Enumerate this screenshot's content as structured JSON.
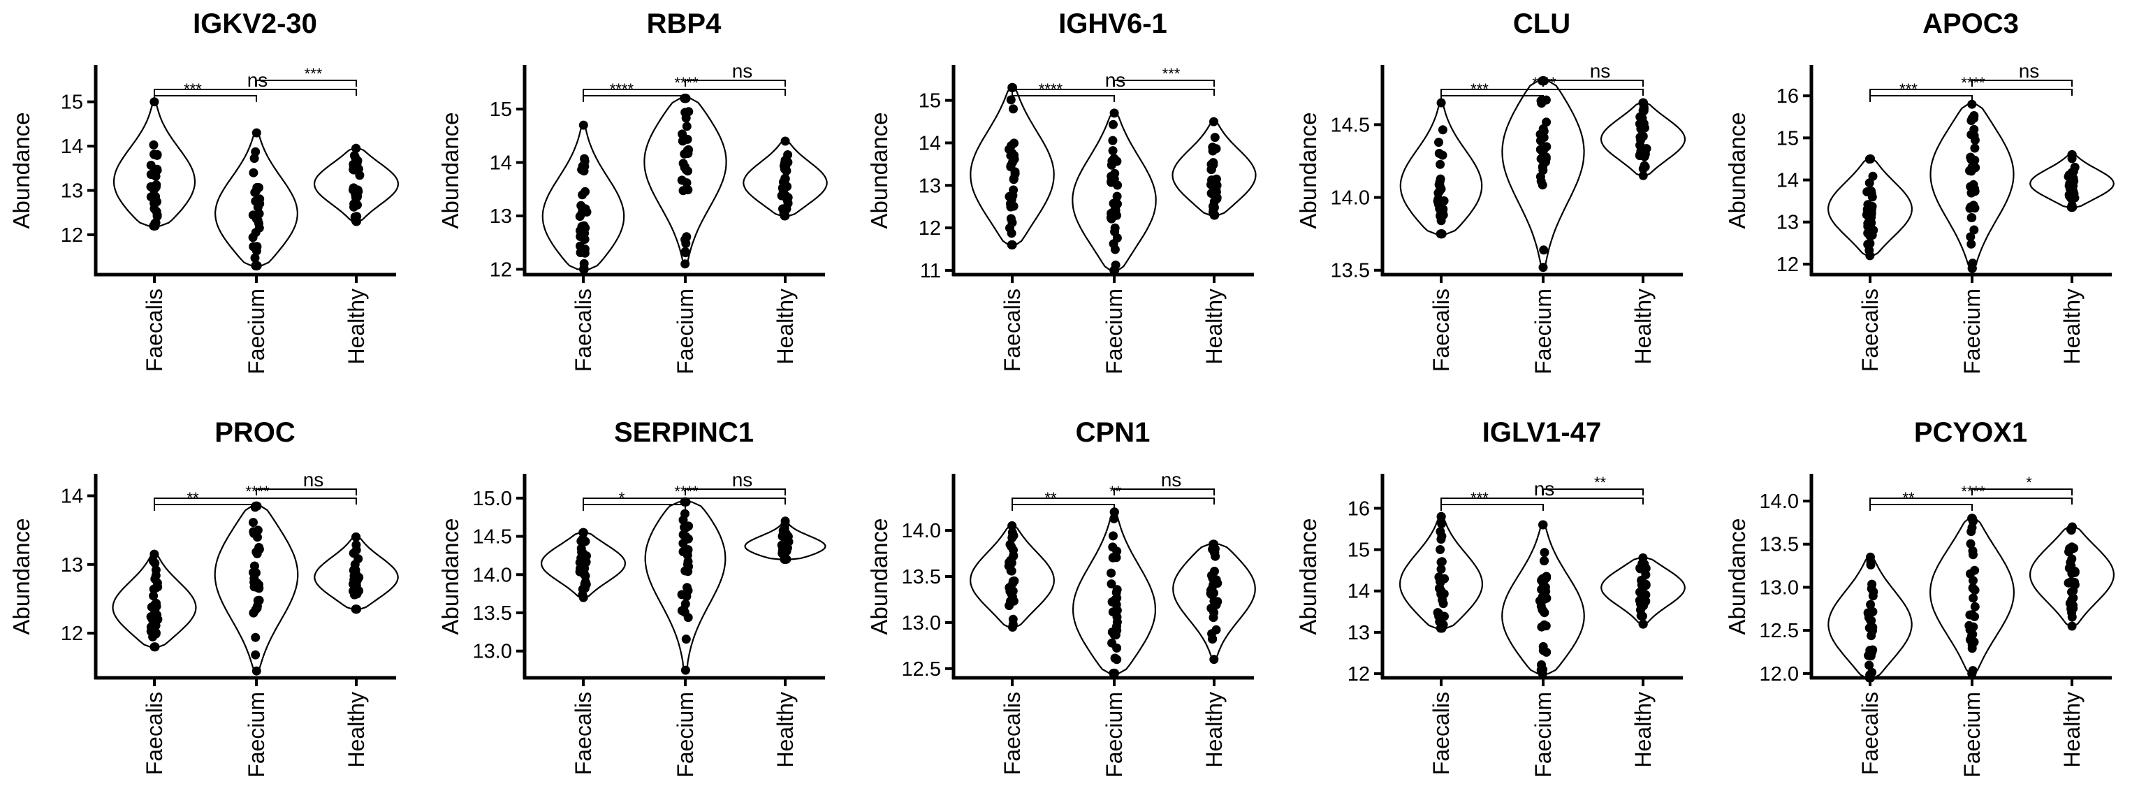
{
  "chart_data": [
    {
      "type": "violin",
      "title": "IGKV2-30",
      "ylabel": "Abundance",
      "xlabel": "",
      "categories": [
        "Faecalis",
        "Faecium",
        "Healthy"
      ],
      "ylim": [
        11.1,
        15.8
      ],
      "yticks": [
        12,
        13,
        14,
        15
      ],
      "ytick_labels": [
        "12",
        "13",
        "14",
        "15"
      ],
      "series": [
        {
          "name": "Faecalis",
          "min": 12.2,
          "max": 15.0,
          "mode": 13.1
        },
        {
          "name": "Faecium",
          "min": 11.3,
          "max": 14.3,
          "mode": 12.4
        },
        {
          "name": "Healthy",
          "min": 12.3,
          "max": 13.95,
          "mode": 13.15
        }
      ],
      "comparisons": [
        {
          "groups": [
            "Faecalis",
            "Faecium"
          ],
          "label": "***"
        },
        {
          "groups": [
            "Faecalis",
            "Healthy"
          ],
          "label": "ns"
        },
        {
          "groups": [
            "Faecium",
            "Healthy"
          ],
          "label": "***"
        }
      ]
    },
    {
      "type": "violin",
      "title": "RBP4",
      "ylabel": "Abundance",
      "xlabel": "",
      "categories": [
        "Faecalis",
        "Faecium",
        "Healthy"
      ],
      "ylim": [
        11.9,
        15.8
      ],
      "yticks": [
        12,
        13,
        14,
        15
      ],
      "ytick_labels": [
        "12",
        "13",
        "14",
        "15"
      ],
      "series": [
        {
          "name": "Faecalis",
          "min": 12.0,
          "max": 14.7,
          "mode": 12.9
        },
        {
          "name": "Faecium",
          "min": 12.1,
          "max": 15.2,
          "mode": 14.1
        },
        {
          "name": "Healthy",
          "min": 13.0,
          "max": 14.4,
          "mode": 13.6
        }
      ],
      "comparisons": [
        {
          "groups": [
            "Faecalis",
            "Faecium"
          ],
          "label": "****"
        },
        {
          "groups": [
            "Faecalis",
            "Healthy"
          ],
          "label": "****"
        },
        {
          "groups": [
            "Faecium",
            "Healthy"
          ],
          "label": "ns"
        }
      ]
    },
    {
      "type": "violin",
      "title": "IGHV6-1",
      "ylabel": "Abundance",
      "xlabel": "",
      "categories": [
        "Faecalis",
        "Faecium",
        "Healthy"
      ],
      "ylim": [
        10.9,
        15.8
      ],
      "yticks": [
        11,
        12,
        13,
        14,
        15
      ],
      "ytick_labels": [
        "11",
        "12",
        "13",
        "14",
        "15"
      ],
      "series": [
        {
          "name": "Faecalis",
          "min": 11.6,
          "max": 15.3,
          "mode": 13.2
        },
        {
          "name": "Faecium",
          "min": 11.0,
          "max": 14.7,
          "mode": 12.6
        },
        {
          "name": "Healthy",
          "min": 12.3,
          "max": 14.5,
          "mode": 13.2
        }
      ],
      "comparisons": [
        {
          "groups": [
            "Faecalis",
            "Faecium"
          ],
          "label": "****"
        },
        {
          "groups": [
            "Faecalis",
            "Healthy"
          ],
          "label": "ns"
        },
        {
          "groups": [
            "Faecium",
            "Healthy"
          ],
          "label": "***"
        }
      ]
    },
    {
      "type": "violin",
      "title": "CLU",
      "ylabel": "Abundance",
      "xlabel": "",
      "categories": [
        "Faecalis",
        "Faecium",
        "Healthy"
      ],
      "ylim": [
        13.47,
        14.9
      ],
      "yticks": [
        13.5,
        14.0,
        14.5
      ],
      "ytick_labels": [
        "13.5",
        "14.0",
        "14.5"
      ],
      "series": [
        {
          "name": "Faecalis",
          "min": 13.75,
          "max": 14.65,
          "mode": 14.05
        },
        {
          "name": "Faecium",
          "min": 13.52,
          "max": 14.8,
          "mode": 14.35
        },
        {
          "name": "Healthy",
          "min": 14.15,
          "max": 14.65,
          "mode": 14.4
        }
      ],
      "comparisons": [
        {
          "groups": [
            "Faecalis",
            "Faecium"
          ],
          "label": "***"
        },
        {
          "groups": [
            "Faecalis",
            "Healthy"
          ],
          "label": "****"
        },
        {
          "groups": [
            "Faecium",
            "Healthy"
          ],
          "label": "ns"
        }
      ]
    },
    {
      "type": "violin",
      "title": "APOC3",
      "ylabel": "Abundance",
      "xlabel": "",
      "categories": [
        "Faecalis",
        "Faecium",
        "Healthy"
      ],
      "ylim": [
        11.75,
        16.7
      ],
      "yticks": [
        12,
        13,
        14,
        15,
        16
      ],
      "ytick_labels": [
        "12",
        "13",
        "14",
        "15",
        "16"
      ],
      "series": [
        {
          "name": "Faecalis",
          "min": 12.2,
          "max": 14.5,
          "mode": 13.3
        },
        {
          "name": "Faecium",
          "min": 11.9,
          "max": 15.8,
          "mode": 14.2
        },
        {
          "name": "Healthy",
          "min": 13.35,
          "max": 14.6,
          "mode": 13.9
        }
      ],
      "comparisons": [
        {
          "groups": [
            "Faecalis",
            "Faecium"
          ],
          "label": "***"
        },
        {
          "groups": [
            "Faecalis",
            "Healthy"
          ],
          "label": "****"
        },
        {
          "groups": [
            "Faecium",
            "Healthy"
          ],
          "label": "ns"
        }
      ]
    },
    {
      "type": "violin",
      "title": "PROC",
      "ylabel": "Abundance",
      "xlabel": "",
      "categories": [
        "Faecalis",
        "Faecium",
        "Healthy"
      ],
      "ylim": [
        11.35,
        14.3
      ],
      "yticks": [
        12,
        13,
        14
      ],
      "ytick_labels": [
        "12",
        "13",
        "14"
      ],
      "series": [
        {
          "name": "Faecalis",
          "min": 11.8,
          "max": 13.15,
          "mode": 12.35
        },
        {
          "name": "Faecium",
          "min": 11.45,
          "max": 13.85,
          "mode": 12.9
        },
        {
          "name": "Healthy",
          "min": 12.35,
          "max": 13.4,
          "mode": 12.8
        }
      ],
      "comparisons": [
        {
          "groups": [
            "Faecalis",
            "Faecium"
          ],
          "label": "**"
        },
        {
          "groups": [
            "Faecalis",
            "Healthy"
          ],
          "label": "****"
        },
        {
          "groups": [
            "Faecium",
            "Healthy"
          ],
          "label": "ns"
        }
      ]
    },
    {
      "type": "violin",
      "title": "SERPINC1",
      "ylabel": "Abundance",
      "xlabel": "",
      "categories": [
        "Faecalis",
        "Faecium",
        "Healthy"
      ],
      "ylim": [
        12.65,
        15.3
      ],
      "yticks": [
        13.0,
        13.5,
        14.0,
        14.5,
        15.0
      ],
      "ytick_labels": [
        "13.0",
        "13.5",
        "14.0",
        "14.5",
        "15.0"
      ],
      "series": [
        {
          "name": "Faecalis",
          "min": 13.7,
          "max": 14.55,
          "mode": 14.15
        },
        {
          "name": "Faecium",
          "min": 12.75,
          "max": 14.95,
          "mode": 14.3
        },
        {
          "name": "Healthy",
          "min": 14.2,
          "max": 14.7,
          "mode": 14.35
        }
      ],
      "comparisons": [
        {
          "groups": [
            "Faecalis",
            "Faecium"
          ],
          "label": "*"
        },
        {
          "groups": [
            "Faecalis",
            "Healthy"
          ],
          "label": "****"
        },
        {
          "groups": [
            "Faecium",
            "Healthy"
          ],
          "label": "ns"
        }
      ]
    },
    {
      "type": "violin",
      "title": "CPN1",
      "ylabel": "Abundance",
      "xlabel": "",
      "categories": [
        "Faecalis",
        "Faecium",
        "Healthy"
      ],
      "ylim": [
        12.4,
        14.6
      ],
      "yticks": [
        12.5,
        13.0,
        13.5,
        14.0
      ],
      "ytick_labels": [
        "12.5",
        "13.0",
        "13.5",
        "14.0"
      ],
      "series": [
        {
          "name": "Faecalis",
          "min": 12.95,
          "max": 14.05,
          "mode": 13.45
        },
        {
          "name": "Faecium",
          "min": 12.45,
          "max": 14.2,
          "mode": 13.1
        },
        {
          "name": "Healthy",
          "min": 12.6,
          "max": 13.85,
          "mode": 13.4
        }
      ],
      "comparisons": [
        {
          "groups": [
            "Faecalis",
            "Faecium"
          ],
          "label": "**"
        },
        {
          "groups": [
            "Faecalis",
            "Healthy"
          ],
          "label": "**"
        },
        {
          "groups": [
            "Faecium",
            "Healthy"
          ],
          "label": "ns"
        }
      ]
    },
    {
      "type": "violin",
      "title": "IGLV1-47",
      "ylabel": "Abundance",
      "xlabel": "",
      "categories": [
        "Faecalis",
        "Faecium",
        "Healthy"
      ],
      "ylim": [
        11.9,
        16.8
      ],
      "yticks": [
        12,
        13,
        14,
        15,
        16
      ],
      "ytick_labels": [
        "12",
        "13",
        "14",
        "15",
        "16"
      ],
      "series": [
        {
          "name": "Faecalis",
          "min": 13.1,
          "max": 15.8,
          "mode": 14.1
        },
        {
          "name": "Faecium",
          "min": 12.0,
          "max": 15.6,
          "mode": 13.3
        },
        {
          "name": "Healthy",
          "min": 13.2,
          "max": 14.8,
          "mode": 14.1
        }
      ],
      "comparisons": [
        {
          "groups": [
            "Faecalis",
            "Faecium"
          ],
          "label": "***"
        },
        {
          "groups": [
            "Faecalis",
            "Healthy"
          ],
          "label": "ns"
        },
        {
          "groups": [
            "Faecium",
            "Healthy"
          ],
          "label": "**"
        }
      ]
    },
    {
      "type": "violin",
      "title": "PCYOX1",
      "ylabel": "Abundance",
      "xlabel": "",
      "categories": [
        "Faecalis",
        "Faecium",
        "Healthy"
      ],
      "ylim": [
        11.95,
        14.3
      ],
      "yticks": [
        12.0,
        12.5,
        13.0,
        13.5,
        14.0
      ],
      "ytick_labels": [
        "12.0",
        "12.5",
        "13.0",
        "13.5",
        "14.0"
      ],
      "series": [
        {
          "name": "Faecalis",
          "min": 11.95,
          "max": 13.35,
          "mode": 12.55
        },
        {
          "name": "Faecium",
          "min": 12.0,
          "max": 13.8,
          "mode": 12.95
        },
        {
          "name": "Healthy",
          "min": 12.55,
          "max": 13.7,
          "mode": 13.15
        }
      ],
      "comparisons": [
        {
          "groups": [
            "Faecalis",
            "Faecium"
          ],
          "label": "**"
        },
        {
          "groups": [
            "Faecalis",
            "Healthy"
          ],
          "label": "****"
        },
        {
          "groups": [
            "Faecium",
            "Healthy"
          ],
          "label": "*"
        }
      ]
    }
  ]
}
